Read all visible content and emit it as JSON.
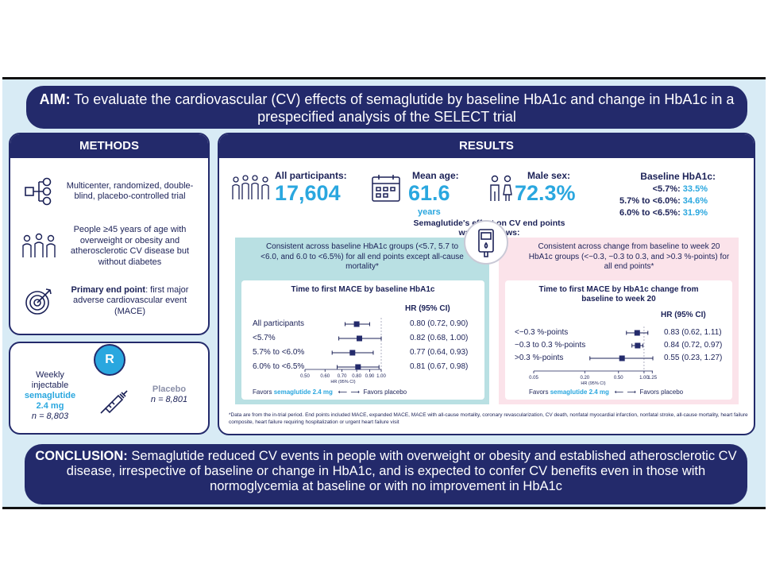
{
  "aim": {
    "label": "AIM:",
    "text": "To evaluate the cardiovascular (CV) effects of semaglutide by baseline HbA1c and change in HbA1c in a prespecified analysis of the SELECT trial"
  },
  "methods": {
    "title": "METHODS",
    "items": [
      {
        "icon": "flowchart-icon",
        "text": "Multicenter, randomized, double-blind, placebo-controlled trial"
      },
      {
        "icon": "people-group-icon",
        "text": "People ≥45 years of age with overweight or obesity and atherosclerotic CV disease but without diabetes"
      },
      {
        "icon": "target-icon",
        "bold": "Primary end point",
        "text": ": first major adverse cardiovascular event (MACE)"
      }
    ],
    "randomization": {
      "badge": "R",
      "left_line1": "Weekly",
      "left_line2": "injectable",
      "left_drug": "semaglutide",
      "left_dose": "2.4 mg",
      "left_n": "n = 8,803",
      "right_drug": "Placebo",
      "right_n": "n = 8,801"
    }
  },
  "results": {
    "title": "RESULTS",
    "all_participants_label": "All participants:",
    "all_participants_value": "17,604",
    "mean_age_label": "Mean age:",
    "mean_age_value": "61.6",
    "mean_age_unit": "years",
    "male_sex_label": "Male sex:",
    "male_sex_value": "72.3%",
    "baseline_title": "Baseline HbA1c:",
    "baseline": [
      {
        "label": "<5.7%:",
        "value": "33.5%"
      },
      {
        "label": "5.7% to <6.0%:",
        "value": "34.6%"
      },
      {
        "label": "6.0% to <6.5%:",
        "value": "31.9%"
      }
    ],
    "effect_heading_1": "Semaglutide's effect on CV end points",
    "effect_heading_2": "was as follows:",
    "left_note": "Consistent across baseline HbA1c groups (<5.7, 5.7 to <6.0, and 6.0 to <6.5%) for all end points except all-cause mortality*",
    "right_note": "Consistent across change from baseline to week 20 HbA1c groups (<−0.3, −0.3 to 0.3, and >0.3 %-points) for all end points*",
    "left_plot": {
      "title": "Time to first MACE by baseline HbA1c",
      "hr_header": "HR (95% CI)",
      "rows": [
        {
          "label": "All participants",
          "hr": 0.8,
          "lo": 0.72,
          "hi": 0.9,
          "text": "0.80 (0.72, 0.90)"
        },
        {
          "label": "<5.7%",
          "hr": 0.82,
          "lo": 0.68,
          "hi": 1.0,
          "text": "0.82 (0.68, 1.00)"
        },
        {
          "label": "5.7% to <6.0%",
          "hr": 0.77,
          "lo": 0.64,
          "hi": 0.93,
          "text": "0.77 (0.64, 0.93)"
        },
        {
          "label": "6.0% to <6.5%",
          "hr": 0.81,
          "lo": 0.67,
          "hi": 0.98,
          "text": "0.81 (0.67, 0.98)"
        }
      ],
      "ticks": [
        "0.50",
        "0.60",
        "0.70",
        "0.80",
        "0.90",
        "1.00"
      ],
      "axis_label": "HR (95% CI)",
      "favors_left": "Favors",
      "favors_left_drug": "semaglutide 2.4 mg",
      "favors_right": "Favors placebo"
    },
    "right_plot": {
      "title": "Time to first MACE by HbA1c change from baseline to week 20",
      "hr_header": "HR (95% CI)",
      "rows": [
        {
          "label": "<−0.3 %-points",
          "hr": 0.83,
          "lo": 0.62,
          "hi": 1.11,
          "text": "0.83 (0.62, 1.11)"
        },
        {
          "label": "−0.3 to 0.3 %-points",
          "hr": 0.84,
          "lo": 0.72,
          "hi": 0.97,
          "text": "0.84 (0.72, 0.97)"
        },
        {
          "label": ">0.3 %-points",
          "hr": 0.55,
          "lo": 0.23,
          "hi": 1.27,
          "text": "0.55 (0.23, 1.27)"
        }
      ],
      "ticks": [
        "0.05",
        "0.20",
        "0.50",
        "1.00",
        "1.25"
      ],
      "axis_label": "HR (95% CI)",
      "favors_left": "Favors",
      "favors_left_drug": "semaglutide 2.4 mg",
      "favors_right": "Favors placebo"
    },
    "footnote": "*Data are from the in-trial period. End points included MACE, expanded MACE, MACE with all-cause mortality, coronary revascularization, CV death, nonfatal myocardial infarction, nonfatal stroke, all-cause mortality, heart failure composite, heart failure requiring hospitalization or urgent heart failure visit"
  },
  "conclusion": {
    "label": "CONCLUSION:",
    "text": "Semaglutide reduced CV events in people with overweight or obesity and established atherosclerotic CV disease, irrespective of baseline or change in HbA1c, and is expected to confer CV benefits even in those with normoglycemia at baseline or with no improvement in HbA1c"
  },
  "colors": {
    "navy": "#232a6b",
    "cyan": "#2aa7df",
    "teal_bg": "#b9e0e3",
    "pink_bg": "#fbe3ea",
    "frame_bg": "#d8ebf5"
  }
}
